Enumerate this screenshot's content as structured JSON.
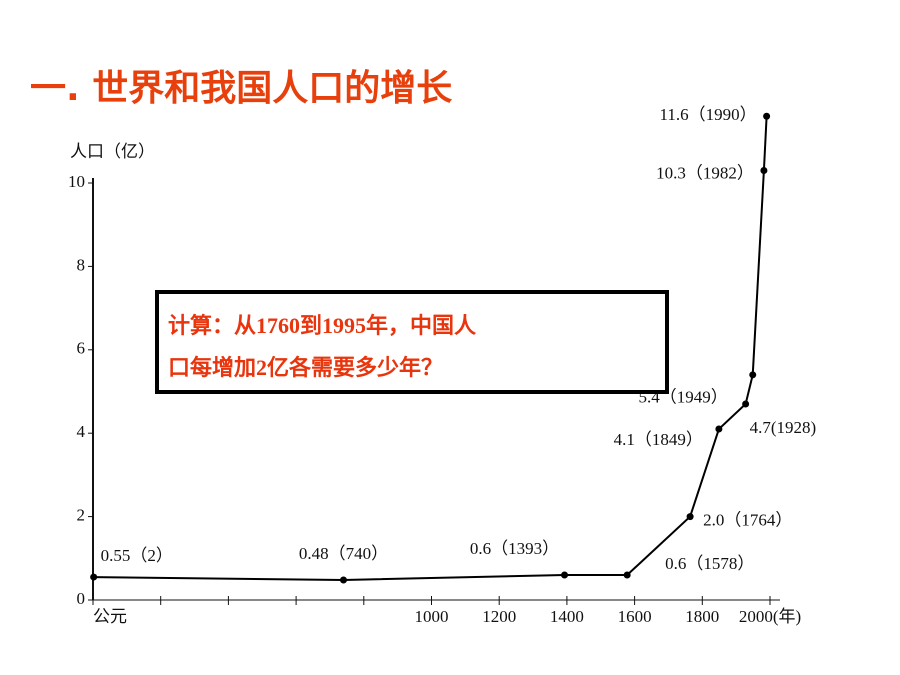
{
  "chart_data": {
    "type": "line",
    "title": "一. 世界和我国人口的增长",
    "y_label": "人口（亿）",
    "annotation": [
      "计算：从1760到1995年，中国人",
      "口每增加2亿各需要多少年？"
    ],
    "x": [
      2,
      740,
      1393,
      1578,
      1764,
      1849,
      1928,
      1949,
      1982,
      1990
    ],
    "values": [
      0.55,
      0.48,
      0.6,
      0.6,
      2.0,
      4.1,
      4.7,
      5.4,
      10.3,
      11.6
    ],
    "value_labels": [
      "0.55（2）",
      "0.48（740）",
      "0.6（1393）",
      "0.6（1578）",
      "2.0（1764）",
      "4.1（1849）",
      "4.7(1928)",
      "5.4（1949）",
      "10.3（1982）",
      "11.6（1990）"
    ],
    "color": "#000000",
    "xlim": [
      0,
      2000
    ],
    "xticks": [
      {
        "value": 0,
        "label": "公元"
      },
      {
        "value": 200,
        "label": null
      },
      {
        "value": 400,
        "label": null
      },
      {
        "value": 600,
        "label": null
      },
      {
        "value": 800,
        "label": null
      },
      1000,
      1200,
      1400,
      1600,
      1800,
      {
        "value": 2000,
        "label": "2000(年)"
      }
    ],
    "ylim": [
      0,
      10
    ],
    "yticks": [
      0,
      2,
      4,
      6,
      8,
      10
    ]
  }
}
